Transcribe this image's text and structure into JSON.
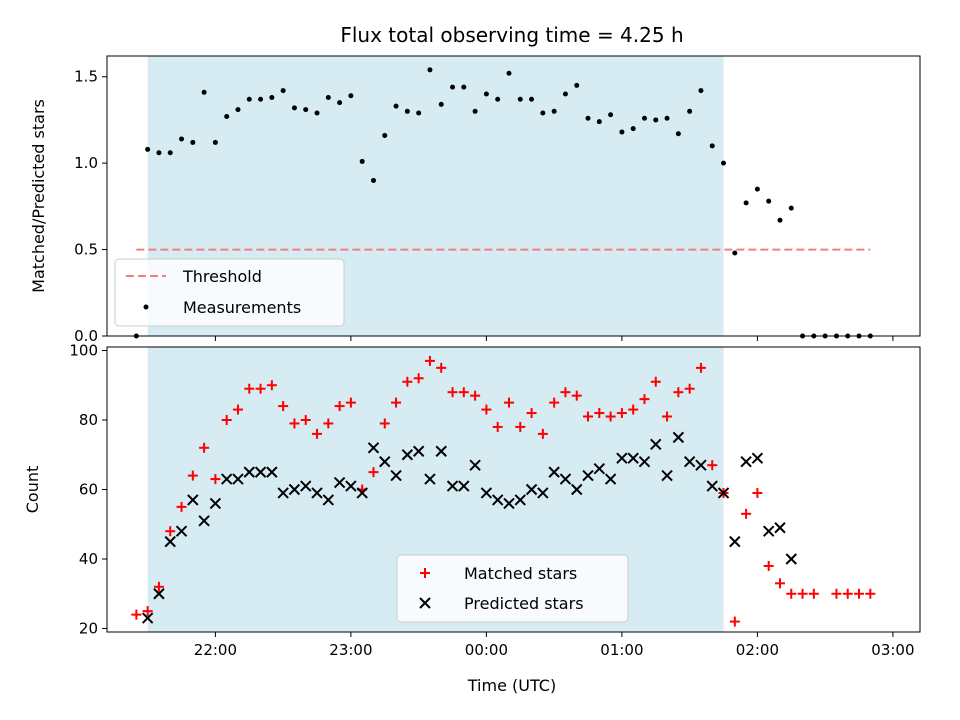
{
  "chart_data": [
    {
      "type": "scatter",
      "title": "Flux total observing time = 4.25 h",
      "ylabel": "Matched/Predicted stars",
      "xlabel": "",
      "ylim": [
        0,
        1.62
      ],
      "yticks": [
        0.0,
        0.5,
        1.0,
        1.5
      ],
      "ytick_labels": [
        "0.0",
        "0.5",
        "1.0",
        "1.5"
      ],
      "shaded_span": {
        "start": "21:30",
        "end": "01:45",
        "color": "#add8e6"
      },
      "threshold": {
        "name": "Threshold",
        "value": 0.5,
        "start": "21:25",
        "end": "02:50",
        "color": "#f08080",
        "style": "dashed"
      },
      "legend": {
        "position": "lower-left",
        "entries": [
          "Threshold",
          "Measurements"
        ]
      },
      "series": [
        {
          "name": "Measurements",
          "marker": "dot",
          "color": "#000000",
          "points": [
            [
              "21:25",
              0.0
            ],
            [
              "21:30",
              1.08
            ],
            [
              "21:35",
              1.06
            ],
            [
              "21:40",
              1.06
            ],
            [
              "21:45",
              1.14
            ],
            [
              "21:50",
              1.12
            ],
            [
              "21:55",
              1.41
            ],
            [
              "22:00",
              1.12
            ],
            [
              "22:05",
              1.27
            ],
            [
              "22:10",
              1.31
            ],
            [
              "22:15",
              1.37
            ],
            [
              "22:20",
              1.37
            ],
            [
              "22:25",
              1.38
            ],
            [
              "22:30",
              1.42
            ],
            [
              "22:35",
              1.32
            ],
            [
              "22:40",
              1.31
            ],
            [
              "22:45",
              1.29
            ],
            [
              "22:50",
              1.38
            ],
            [
              "22:55",
              1.35
            ],
            [
              "23:00",
              1.39
            ],
            [
              "23:05",
              1.01
            ],
            [
              "23:10",
              0.9
            ],
            [
              "23:15",
              1.16
            ],
            [
              "23:20",
              1.33
            ],
            [
              "23:25",
              1.3
            ],
            [
              "23:30",
              1.29
            ],
            [
              "23:35",
              1.54
            ],
            [
              "23:40",
              1.34
            ],
            [
              "23:45",
              1.44
            ],
            [
              "23:50",
              1.44
            ],
            [
              "23:55",
              1.3
            ],
            [
              "00:00",
              1.4
            ],
            [
              "00:05",
              1.37
            ],
            [
              "00:10",
              1.52
            ],
            [
              "00:15",
              1.37
            ],
            [
              "00:20",
              1.37
            ],
            [
              "00:25",
              1.29
            ],
            [
              "00:30",
              1.3
            ],
            [
              "00:35",
              1.4
            ],
            [
              "00:40",
              1.45
            ],
            [
              "00:45",
              1.26
            ],
            [
              "00:50",
              1.24
            ],
            [
              "00:55",
              1.28
            ],
            [
              "01:00",
              1.18
            ],
            [
              "01:05",
              1.2
            ],
            [
              "01:10",
              1.26
            ],
            [
              "01:15",
              1.25
            ],
            [
              "01:20",
              1.26
            ],
            [
              "01:25",
              1.17
            ],
            [
              "01:30",
              1.3
            ],
            [
              "01:35",
              1.42
            ],
            [
              "01:40",
              1.1
            ],
            [
              "01:45",
              1.0
            ],
            [
              "01:50",
              0.48
            ],
            [
              "01:55",
              0.77
            ],
            [
              "02:00",
              0.85
            ],
            [
              "02:05",
              0.78
            ],
            [
              "02:10",
              0.67
            ],
            [
              "02:15",
              0.74
            ],
            [
              "02:20",
              0.0
            ],
            [
              "02:25",
              0.0
            ],
            [
              "02:30",
              0.0
            ],
            [
              "02:35",
              0.0
            ],
            [
              "02:40",
              0.0
            ],
            [
              "02:45",
              0.0
            ],
            [
              "02:50",
              0.0
            ]
          ]
        }
      ]
    },
    {
      "type": "scatter",
      "title": "",
      "ylabel": "Count",
      "xlabel": "Time (UTC)",
      "ylim": [
        19,
        101
      ],
      "yticks": [
        20,
        40,
        60,
        80,
        100
      ],
      "ytick_labels": [
        "20",
        "40",
        "60",
        "80",
        "100"
      ],
      "xticks": [
        "22:00",
        "23:00",
        "00:00",
        "01:00",
        "02:00",
        "03:00"
      ],
      "xtick_labels": [
        "22:00",
        "23:00",
        "00:00",
        "01:00",
        "02:00",
        "03:00"
      ],
      "shaded_span": {
        "start": "21:30",
        "end": "01:45",
        "color": "#add8e6"
      },
      "legend": {
        "position": "lower-center",
        "entries": [
          "Matched stars",
          "Predicted stars"
        ]
      },
      "series": [
        {
          "name": "Matched stars",
          "marker": "plus",
          "color": "#ff0000",
          "points": [
            [
              "21:25",
              24
            ],
            [
              "21:30",
              25
            ],
            [
              "21:35",
              32
            ],
            [
              "21:40",
              48
            ],
            [
              "21:45",
              55
            ],
            [
              "21:50",
              64
            ],
            [
              "21:55",
              72
            ],
            [
              "22:00",
              63
            ],
            [
              "22:05",
              80
            ],
            [
              "22:10",
              83
            ],
            [
              "22:15",
              89
            ],
            [
              "22:20",
              89
            ],
            [
              "22:25",
              90
            ],
            [
              "22:30",
              84
            ],
            [
              "22:35",
              79
            ],
            [
              "22:40",
              80
            ],
            [
              "22:45",
              76
            ],
            [
              "22:50",
              79
            ],
            [
              "22:55",
              84
            ],
            [
              "23:00",
              85
            ],
            [
              "23:05",
              60
            ],
            [
              "23:10",
              65
            ],
            [
              "23:15",
              79
            ],
            [
              "23:20",
              85
            ],
            [
              "23:25",
              91
            ],
            [
              "23:30",
              92
            ],
            [
              "23:35",
              97
            ],
            [
              "23:40",
              95
            ],
            [
              "23:45",
              88
            ],
            [
              "23:50",
              88
            ],
            [
              "23:55",
              87
            ],
            [
              "00:00",
              83
            ],
            [
              "00:05",
              78
            ],
            [
              "00:10",
              85
            ],
            [
              "00:15",
              78
            ],
            [
              "00:20",
              82
            ],
            [
              "00:25",
              76
            ],
            [
              "00:30",
              85
            ],
            [
              "00:35",
              88
            ],
            [
              "00:40",
              87
            ],
            [
              "00:45",
              81
            ],
            [
              "00:50",
              82
            ],
            [
              "00:55",
              81
            ],
            [
              "01:00",
              82
            ],
            [
              "01:05",
              83
            ],
            [
              "01:10",
              86
            ],
            [
              "01:15",
              91
            ],
            [
              "01:20",
              81
            ],
            [
              "01:25",
              88
            ],
            [
              "01:30",
              89
            ],
            [
              "01:35",
              95
            ],
            [
              "01:40",
              67
            ],
            [
              "01:45",
              59
            ],
            [
              "01:50",
              22
            ],
            [
              "01:55",
              53
            ],
            [
              "02:00",
              59
            ],
            [
              "02:05",
              38
            ],
            [
              "02:10",
              33
            ],
            [
              "02:15",
              30
            ],
            [
              "02:20",
              30
            ],
            [
              "02:25",
              30
            ],
            [
              "02:35",
              30
            ],
            [
              "02:40",
              30
            ],
            [
              "02:45",
              30
            ],
            [
              "02:50",
              30
            ]
          ]
        },
        {
          "name": "Predicted stars",
          "marker": "x",
          "color": "#000000",
          "points": [
            [
              "21:30",
              23
            ],
            [
              "21:35",
              30
            ],
            [
              "21:40",
              45
            ],
            [
              "21:45",
              48
            ],
            [
              "21:50",
              57
            ],
            [
              "21:55",
              51
            ],
            [
              "22:00",
              56
            ],
            [
              "22:05",
              63
            ],
            [
              "22:10",
              63
            ],
            [
              "22:15",
              65
            ],
            [
              "22:20",
              65
            ],
            [
              "22:25",
              65
            ],
            [
              "22:30",
              59
            ],
            [
              "22:35",
              60
            ],
            [
              "22:40",
              61
            ],
            [
              "22:45",
              59
            ],
            [
              "22:50",
              57
            ],
            [
              "22:55",
              62
            ],
            [
              "23:00",
              61
            ],
            [
              "23:05",
              59
            ],
            [
              "23:10",
              72
            ],
            [
              "23:15",
              68
            ],
            [
              "23:20",
              64
            ],
            [
              "23:25",
              70
            ],
            [
              "23:30",
              71
            ],
            [
              "23:35",
              63
            ],
            [
              "23:40",
              71
            ],
            [
              "23:45",
              61
            ],
            [
              "23:50",
              61
            ],
            [
              "23:55",
              67
            ],
            [
              "00:00",
              59
            ],
            [
              "00:05",
              57
            ],
            [
              "00:10",
              56
            ],
            [
              "00:15",
              57
            ],
            [
              "00:20",
              60
            ],
            [
              "00:25",
              59
            ],
            [
              "00:30",
              65
            ],
            [
              "00:35",
              63
            ],
            [
              "00:40",
              60
            ],
            [
              "00:45",
              64
            ],
            [
              "00:50",
              66
            ],
            [
              "00:55",
              63
            ],
            [
              "01:00",
              69
            ],
            [
              "01:05",
              69
            ],
            [
              "01:10",
              68
            ],
            [
              "01:15",
              73
            ],
            [
              "01:20",
              64
            ],
            [
              "01:25",
              75
            ],
            [
              "01:30",
              68
            ],
            [
              "01:35",
              67
            ],
            [
              "01:40",
              61
            ],
            [
              "01:45",
              59
            ],
            [
              "01:50",
              45
            ],
            [
              "01:55",
              68
            ],
            [
              "02:00",
              69
            ],
            [
              "02:05",
              48
            ],
            [
              "02:10",
              49
            ],
            [
              "02:15",
              40
            ]
          ]
        }
      ]
    }
  ]
}
